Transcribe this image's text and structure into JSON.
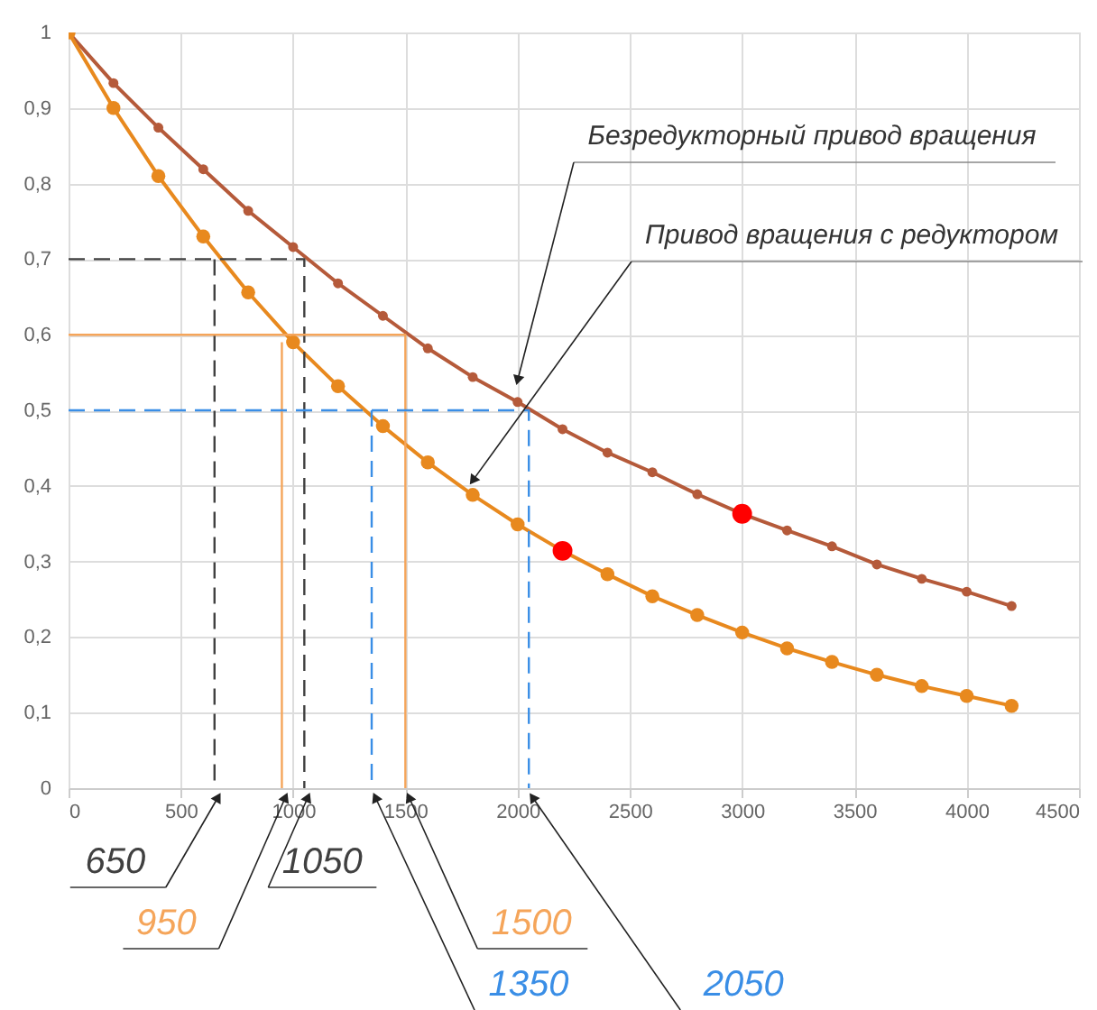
{
  "chart_data": {
    "type": "line",
    "xlim": [
      0,
      4500
    ],
    "ylim": [
      0,
      1
    ],
    "xticks": [
      0,
      500,
      1000,
      1500,
      2000,
      2500,
      3000,
      3500,
      4000,
      4500
    ],
    "yticks": [
      0,
      {
        "value": 0.1,
        "label": "0,1"
      },
      {
        "value": 0.2,
        "label": "0,2"
      },
      {
        "value": 0.3,
        "label": "0,3"
      },
      {
        "value": 0.4,
        "label": "0,4"
      },
      {
        "value": 0.5,
        "label": "0,5"
      },
      {
        "value": 0.6,
        "label": "0,6"
      },
      {
        "value": 0.7,
        "label": "0,7"
      },
      {
        "value": 0.8,
        "label": "0,8"
      },
      {
        "value": 0.9,
        "label": "0,9"
      },
      1
    ],
    "grid": true,
    "marker": "circle",
    "x": [
      0,
      200,
      400,
      600,
      800,
      1000,
      1200,
      1400,
      1600,
      1800,
      2000,
      2200,
      2400,
      2600,
      2800,
      3000,
      3200,
      3400,
      3600,
      3800,
      4000,
      4200
    ],
    "series": [
      {
        "name": "Безредукторный привод вращения",
        "color": "#b55a3a",
        "values": [
          1,
          0.933,
          0.874,
          0.819,
          0.764,
          0.716,
          0.668,
          0.625,
          0.582,
          0.544,
          0.511,
          0.475,
          0.444,
          0.418,
          0.389,
          0.363,
          0.341,
          0.32,
          0.296,
          0.277,
          0.26,
          0.241
        ]
      },
      {
        "name": "Привод вращения с редуктором",
        "color": "#e8891e",
        "values": [
          1,
          0.9,
          0.81,
          0.73,
          0.656,
          0.59,
          0.532,
          0.479,
          0.431,
          0.388,
          0.349,
          0.314,
          0.283,
          0.254,
          0.229,
          0.206,
          0.185,
          0.167,
          0.15,
          0.135,
          0.122,
          0.109
        ]
      },
      {
        "type": "scatter",
        "color": "#ff0000",
        "x": [
          2200,
          3000
        ],
        "values": [
          0.314,
          0.363
        ]
      },
      {
        "type": "line",
        "color": "#404040",
        "line_style": "dashed",
        "marker": "none",
        "x": [
          0,
          1050,
          1050
        ],
        "values": [
          0.7,
          0.7,
          0
        ]
      },
      {
        "type": "line",
        "color": "#404040",
        "line_style": "dashed",
        "marker": "none",
        "x": [
          650,
          650
        ],
        "values": [
          0.7,
          0
        ]
      },
      {
        "type": "line",
        "color": "#f5a55a",
        "line_style": "solid",
        "marker": "none",
        "x": [
          0,
          1500,
          1500
        ],
        "values": [
          0.6,
          0.6,
          0
        ]
      },
      {
        "type": "line",
        "color": "#f5a55a",
        "line_style": "solid",
        "marker": "none",
        "x": [
          950,
          950
        ],
        "values": [
          0.59,
          0
        ]
      },
      {
        "type": "line",
        "color": "#3a8ee6",
        "line_style": "dashed",
        "marker": "none",
        "x": [
          0,
          2050,
          2050
        ],
        "values": [
          0.5,
          0.5,
          0
        ]
      },
      {
        "type": "line",
        "color": "#3a8ee6",
        "line_style": "dashed",
        "marker": "none",
        "x": [
          1350,
          1350
        ],
        "values": [
          0.5,
          0
        ]
      }
    ],
    "annotations": [
      {
        "text": "650",
        "x": 650,
        "y": 0
      },
      {
        "text": "950",
        "x": 950,
        "y": 0
      },
      {
        "text": "1050",
        "x": 1050,
        "y": 0
      },
      {
        "text": "1350",
        "x": 1350,
        "y": 0
      },
      {
        "text": "1500",
        "x": 1500,
        "y": 0
      },
      {
        "text": "2050",
        "x": 2050,
        "y": 0
      }
    ]
  }
}
